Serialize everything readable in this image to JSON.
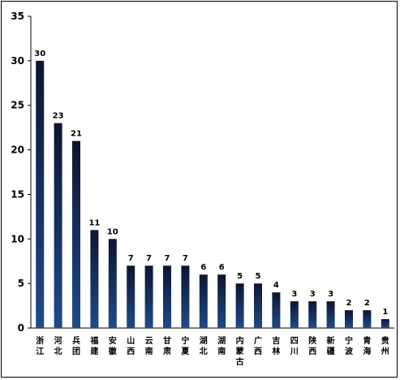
{
  "chart_data": {
    "type": "bar",
    "title": "",
    "xlabel": "",
    "ylabel": "",
    "ylim": [
      0,
      35
    ],
    "yticks": [
      0,
      5,
      10,
      15,
      20,
      25,
      30,
      35
    ],
    "grid": false,
    "legend": "none",
    "bar_color_top": "#0d1530",
    "bar_color_bottom": "#1f4a8a",
    "categories": [
      "浙江",
      "河北",
      "兵团",
      "福建",
      "安徽",
      "山西",
      "云南",
      "甘肃",
      "宁夏",
      "湖北",
      "湖南",
      "内蒙古",
      "广西",
      "吉林",
      "四川",
      "陕西",
      "新疆",
      "宁波",
      "青海",
      "贵州"
    ],
    "values": [
      30,
      23,
      21,
      11,
      10,
      7,
      7,
      7,
      7,
      6,
      6,
      5,
      5,
      4,
      3,
      3,
      3,
      2,
      2,
      1
    ],
    "data_labels": [
      "30",
      "23",
      "21",
      "11",
      "10",
      "7",
      "7",
      "7",
      "7",
      "6",
      "6",
      "5",
      "5",
      "4",
      "3",
      "3",
      "3",
      "2",
      "2",
      "1"
    ]
  }
}
